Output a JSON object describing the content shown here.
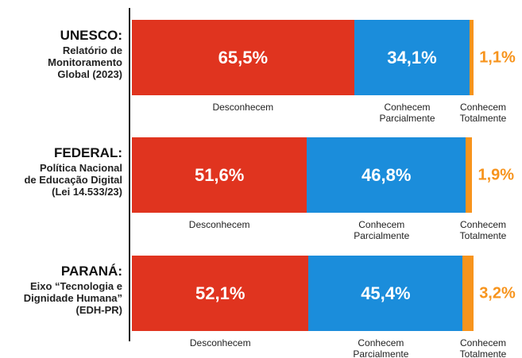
{
  "chart_data": {
    "type": "bar",
    "orientation": "horizontal",
    "stacked": true,
    "categories": [
      "UNESCO:",
      "FEDERAL:",
      "PARANÁ:"
    ],
    "category_details": [
      [
        "Relatório de",
        "Monitoramento",
        "Global (2023)"
      ],
      [
        "Política Nacional",
        "de Educação Digital",
        "(Lei 14.533/23)"
      ],
      [
        "Eixo “Tecnologia e",
        "Dignidade Humana”",
        "(EDH-PR)"
      ]
    ],
    "xlim": [
      0,
      100
    ],
    "series": [
      {
        "name": "Desconhecem",
        "color": "#e0341f",
        "values": [
          65.5,
          51.6,
          52.1
        ],
        "value_labels": [
          "65,5%",
          "51,6%",
          "52,1%"
        ]
      },
      {
        "name": "Conhecem Parcialmente",
        "color": "#1b8ddb",
        "values": [
          34.1,
          46.8,
          45.4
        ],
        "value_labels": [
          "34,1%",
          "46,8%",
          "45,4%"
        ]
      },
      {
        "name": "Conhecem Totalmente",
        "color": "#f7941d",
        "values": [
          1.1,
          1.9,
          3.2
        ],
        "value_labels": [
          "1,1%",
          "1,9%",
          "3,2%"
        ]
      }
    ]
  }
}
